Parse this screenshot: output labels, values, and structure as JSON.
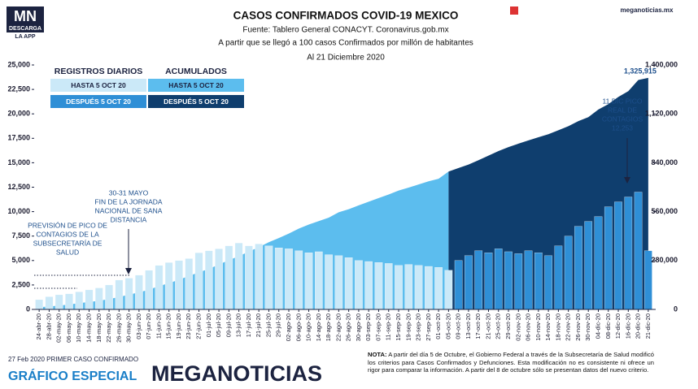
{
  "brand": {
    "logo": "MN",
    "logo_sub": "DESCARGA",
    "logo_app": "LA APP",
    "site": "meganoticias.mx"
  },
  "chart_data": {
    "type": "bar-area",
    "title": "CASOS CONFIRMADOS COVID-19 MEXICO",
    "subtitle": [
      "Fuente: Tablero General CONACYT. Coronavirus.gob.mx",
      "A partir que se llegó a 100 casos Confirmados por millón de habitantes",
      "Al 21 Diciembre 2020"
    ],
    "categories": [
      "24-abr-20",
      "28-abr-20",
      "02-may-20",
      "06-may-20",
      "10-may-20",
      "14-may-20",
      "18-may-20",
      "22-may-20",
      "26-may-20",
      "30-may-20",
      "03-jun-20",
      "07-jun-20",
      "11-jun-20",
      "15-jun-20",
      "19-jun-20",
      "23-jun-20",
      "27-jun-20",
      "01-jul-20",
      "05-jul-20",
      "09-jul-20",
      "13-jul-20",
      "17-jul-20",
      "21-jul-20",
      "25-jul-20",
      "29-jul-20",
      "02-ago-20",
      "06-ago-20",
      "10-ago-20",
      "14-ago-20",
      "18-ago-20",
      "22-ago-20",
      "26-ago-20",
      "30-ago-20",
      "03-sep-20",
      "07-sep-20",
      "11-sep-20",
      "15-sep-20",
      "19-sep-20",
      "23-sep-20",
      "27-sep-20",
      "01-oct-20",
      "05-oct-20",
      "09-oct-20",
      "13-oct-20",
      "17-oct-20",
      "21-oct-20",
      "25-oct-20",
      "29-oct-20",
      "02-nov-20",
      "06-nov-20",
      "10-nov-20",
      "14-nov-20",
      "18-nov-20",
      "22-nov-20",
      "26-nov-20",
      "30-nov-20",
      "04-dic-20",
      "08-dic-20",
      "12-dic-20",
      "16-dic-20",
      "20-dic-20",
      "21-dic-20"
    ],
    "legend_groups": [
      "REGISTROS DIARIOS",
      "ACUMULADOS"
    ],
    "series": [
      {
        "name": "HASTA 5 OCT 20",
        "kind": "bar",
        "color": "#cbe9f8",
        "values": [
          1000,
          1300,
          1500,
          1600,
          1800,
          2000,
          2200,
          2500,
          3000,
          3200,
          3500,
          4000,
          4500,
          4800,
          5000,
          5200,
          5800,
          6000,
          6200,
          6500,
          6800,
          6500,
          6700,
          6500,
          6300,
          6200,
          6000,
          5800,
          5900,
          5600,
          5500,
          5300,
          5000,
          4900,
          4800,
          4700,
          4500,
          4600,
          4500,
          4400,
          4300,
          4000,
          null,
          null,
          null,
          null,
          null,
          null,
          null,
          null,
          null,
          null,
          null,
          null,
          null,
          null,
          null,
          null,
          null,
          null,
          null,
          null
        ]
      },
      {
        "name": "DESPUÉS 5 OCT 20",
        "kind": "bar",
        "color": "#2f8fd6",
        "values": [
          null,
          null,
          null,
          null,
          null,
          null,
          null,
          null,
          null,
          null,
          null,
          null,
          null,
          null,
          null,
          null,
          null,
          null,
          null,
          null,
          null,
          null,
          null,
          null,
          null,
          null,
          null,
          null,
          null,
          null,
          null,
          null,
          null,
          null,
          null,
          null,
          null,
          null,
          null,
          null,
          null,
          null,
          5000,
          5500,
          6000,
          5800,
          6200,
          5900,
          5700,
          6000,
          5800,
          5500,
          6500,
          7500,
          8500,
          9000,
          9500,
          10500,
          11000,
          11500,
          12000,
          6000
        ]
      },
      {
        "name": "HASTA 5 OCT 20",
        "kind": "area",
        "axis": "y2",
        "color": "#5cbdee",
        "values": [
          12872,
          16752,
          22088,
          27634,
          36327,
          42595,
          49219,
          59567,
          71105,
          84627,
          97326,
          113619,
          133974,
          150264,
          170485,
          191410,
          212802,
          231770,
          256848,
          282283,
          304435,
          331298,
          356255,
          385036,
          408449,
          434193,
          462690,
          485836,
          505751,
          525733,
          556216,
          573888,
          595841,
          616894,
          637509,
          658299,
          680931,
          697663,
          715457,
          733717,
          748315,
          789780,
          null,
          null,
          null,
          null,
          null,
          null,
          null,
          null,
          null,
          null,
          null,
          null,
          null,
          null,
          null,
          null,
          null,
          null,
          null,
          null
        ]
      },
      {
        "name": "DESPUÉS 5 OCT 20",
        "kind": "area",
        "axis": "y2",
        "color": "#0f3e6e",
        "values": [
          null,
          null,
          null,
          null,
          null,
          null,
          null,
          null,
          null,
          null,
          null,
          null,
          null,
          null,
          null,
          null,
          null,
          null,
          null,
          null,
          null,
          null,
          null,
          null,
          null,
          null,
          null,
          null,
          null,
          null,
          null,
          null,
          null,
          null,
          null,
          null,
          null,
          null,
          null,
          null,
          null,
          789780,
          809751,
          829396,
          854926,
          880775,
          906863,
          929392,
          949197,
          967825,
          986177,
          1003253,
          1025969,
          1049358,
          1078594,
          1101403,
          1144643,
          1175850,
          1217126,
          1250044,
          1313675,
          1325915
        ],
        "value_labels": [
          null,
          null,
          null,
          null,
          null,
          null,
          null,
          null,
          null,
          null,
          null,
          null,
          null,
          null,
          null,
          null,
          null,
          null,
          null,
          null,
          null,
          null,
          null,
          null,
          null,
          null,
          null,
          null,
          null,
          null,
          null,
          null,
          null,
          null,
          null,
          null,
          null,
          null,
          null,
          null,
          null,
          null,
          null,
          null,
          null,
          null,
          null,
          null,
          null,
          null,
          null,
          null,
          null,
          null,
          null,
          null,
          null,
          null,
          null,
          null,
          null,
          "1,325,915"
        ]
      }
    ],
    "ylim": [
      0,
      25000
    ],
    "yticks": [
      0,
      {
        "value": 2500,
        "label": "2,500"
      },
      {
        "value": 5000,
        "label": "5,000"
      },
      {
        "value": 7500,
        "label": "7,500"
      },
      {
        "value": 10000,
        "label": "10,000"
      },
      {
        "value": 12500,
        "label": "12,500"
      },
      {
        "value": 15000,
        "label": "15,000"
      },
      {
        "value": 17500,
        "label": "17,500"
      },
      {
        "value": 20000,
        "label": "20,000"
      },
      {
        "value": 22500,
        "label": "22,500"
      },
      {
        "value": 25000,
        "label": "25,000"
      }
    ],
    "y2lim": [
      0,
      1400000
    ],
    "y2ticks": [
      0,
      {
        "value": 280000,
        "label": "280,000"
      },
      {
        "value": 560000,
        "label": "560,000"
      },
      {
        "value": 840000,
        "label": "840,000"
      },
      {
        "value": 1120000,
        "label": "1,120,000"
      },
      {
        "value": 1400000,
        "label": "1,400,000"
      }
    ],
    "annotations": [
      {
        "lines": [
          "30-31 MAYO",
          "FIN DE LA JORNADA",
          "NACIONAL DE SANA",
          "DISTANCIA"
        ]
      },
      {
        "lines": [
          "PREVISIÓN DE PICO DE",
          "CONTAGIOS DE LA",
          "SUBSECRETARÍA DE",
          "SALUD"
        ]
      },
      {
        "lines": [
          "11 DIC PICO",
          "REAL DE",
          "CONTAGIOS",
          "12,253"
        ]
      }
    ]
  },
  "footer": {
    "first_case": "27 Feb 2020 PRIMER CASO CONFIRMADO",
    "special": "GRÁFICO ESPECIAL",
    "brand": "MEGANOTICIAS",
    "note_label": "NOTA:",
    "note": "A partir del día 5 de Octubre, el Gobierno Federal a través de la Subsecretaría de Salud modificó los criterios para Casos Confirmados y Defunciones. Esta modificación no es consistente ni ofrece un rigor para comparar la información. A partir del 8 de octubre sólo se presentan datos del nuevo criterio."
  }
}
